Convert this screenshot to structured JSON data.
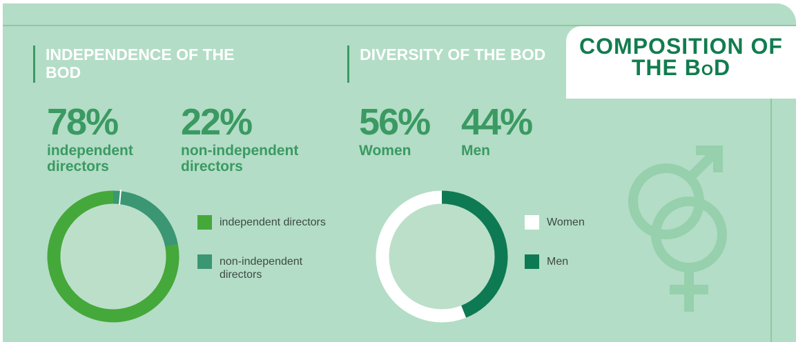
{
  "badge": "COMPOSITION OF THE BoD",
  "chart_data": [
    {
      "type": "donut",
      "title": "INDEPENDENCE OF THE BOD",
      "categories": [
        "independent directors",
        "non-independent directors"
      ],
      "values": [
        78,
        22
      ],
      "value_labels": [
        "78%",
        "22%"
      ],
      "colors": [
        "#45a83a",
        "#3a9673"
      ]
    },
    {
      "type": "donut",
      "title": "DIVERSITY OF THE BOD",
      "categories": [
        "Women",
        "Men"
      ],
      "values": [
        56,
        44
      ],
      "value_labels": [
        "56%",
        "44%"
      ],
      "colors": [
        "#ffffff",
        "#0e7a53"
      ]
    }
  ]
}
